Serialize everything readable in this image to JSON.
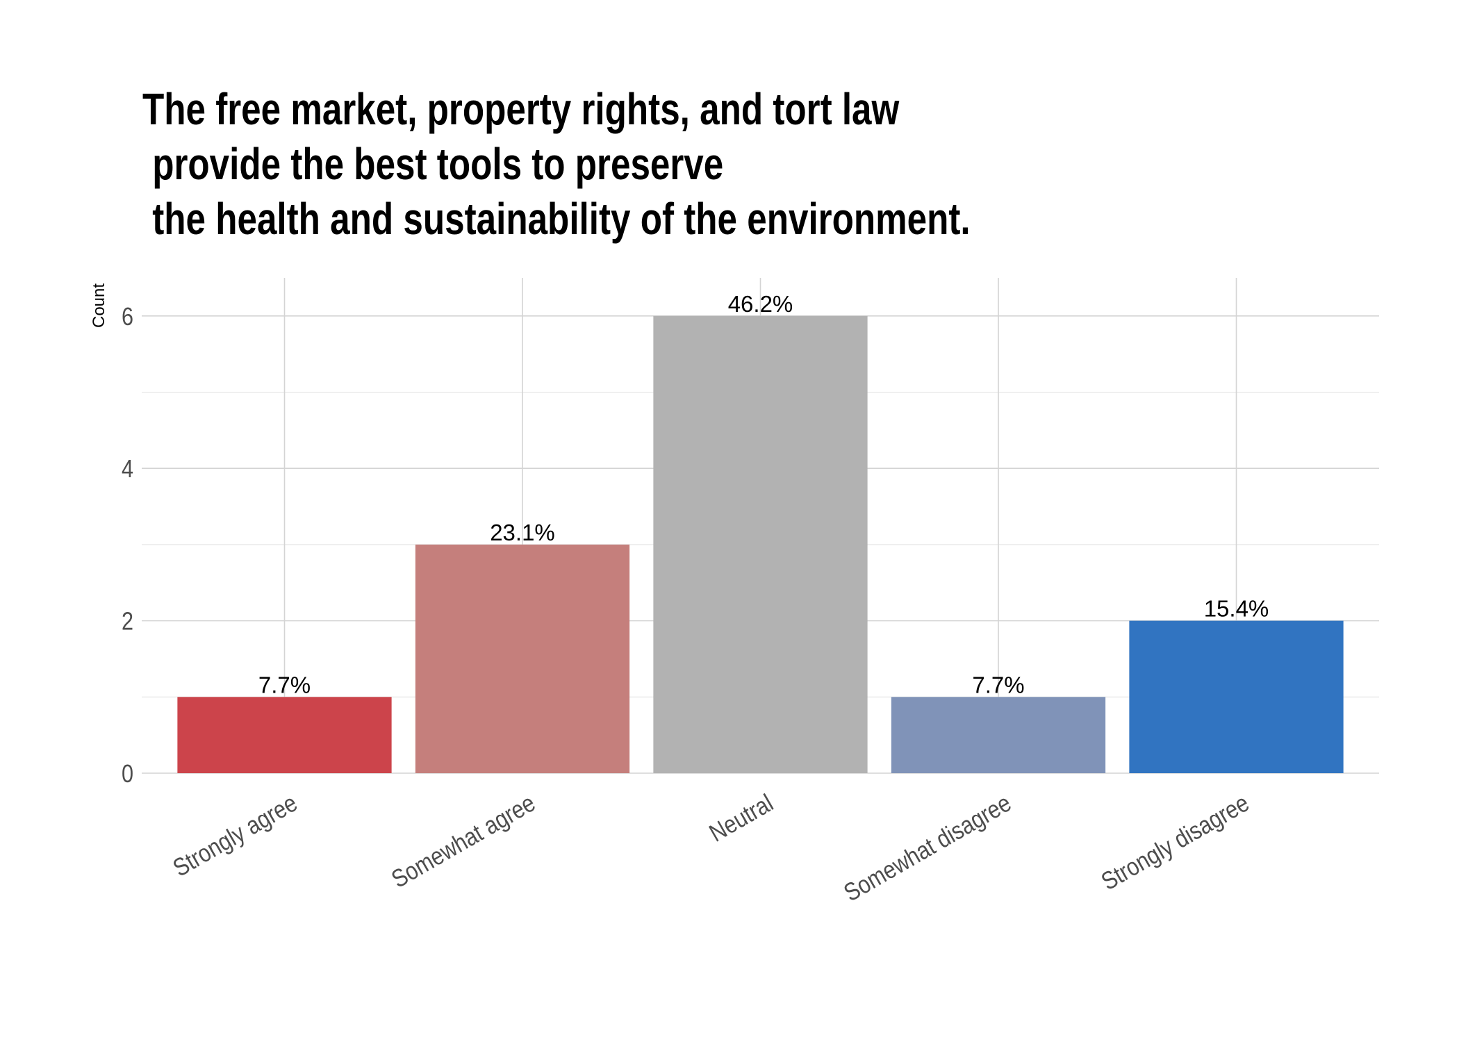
{
  "chart_data": {
    "type": "bar",
    "title": [
      "The free market, property rights, and tort law",
      " provide the best tools to preserve",
      " the health and sustainability of the environment."
    ],
    "y_label": "Count",
    "categories": [
      "Strongly agree",
      "Somewhat agree",
      "Neutral",
      "Somewhat disagree",
      "Strongly disagree"
    ],
    "values": [
      1,
      3,
      6,
      1,
      2
    ],
    "value_labels": [
      "7.7%",
      "23.1%",
      "46.2%",
      "7.7%",
      "15.4%"
    ],
    "colors": [
      "#cc444b",
      "#c57f7c",
      "#b2b2b2",
      "#8093b8",
      "#3174c1"
    ],
    "ylim": [
      0,
      6.5
    ],
    "yticks": [
      0,
      2,
      4,
      6
    ],
    "y_minor_ticks": [
      1,
      3,
      5
    ],
    "grid": true
  }
}
